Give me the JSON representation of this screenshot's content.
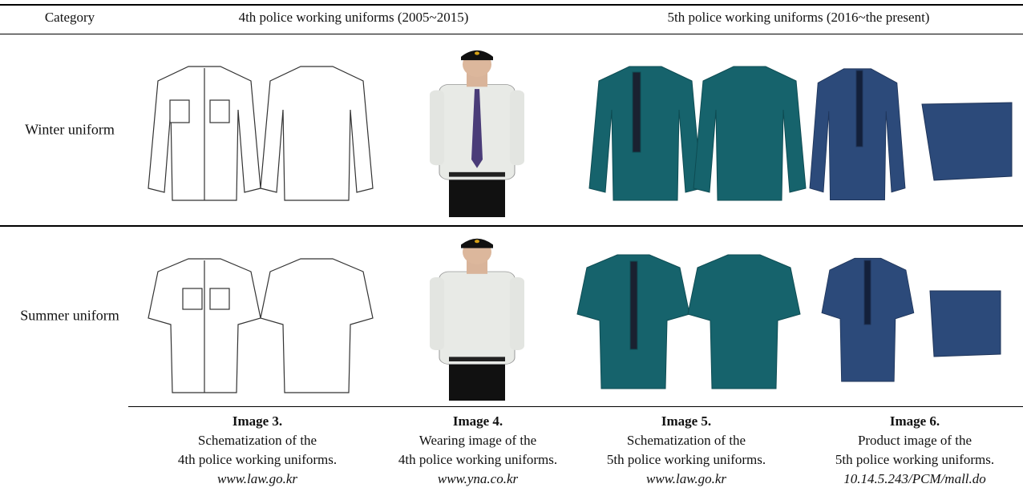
{
  "table": {
    "header": [
      "Category",
      "4th police working uniforms (2005~2015)",
      "5th police working uniforms (2016~the present)"
    ],
    "rows": [
      "Winter uniform",
      "Summer uniform"
    ],
    "captions": [
      {
        "title": "Image 3.",
        "lines": [
          "Schematization of the",
          "4th police working uniforms."
        ],
        "source": "www.law.go.kr"
      },
      {
        "title": "Image 4.",
        "lines": [
          "Wearing image of the",
          "4th police working uniforms."
        ],
        "source": "www.yna.co.kr"
      },
      {
        "title": "Image 5.",
        "lines": [
          "Schematization of the",
          "5th police working uniforms."
        ],
        "source": "www.law.go.kr"
      },
      {
        "title": "Image 6.",
        "lines": [
          "Product image of the",
          "5th police working uniforms."
        ],
        "source": "10.14.5.243/PCM/mall.do"
      }
    ]
  }
}
